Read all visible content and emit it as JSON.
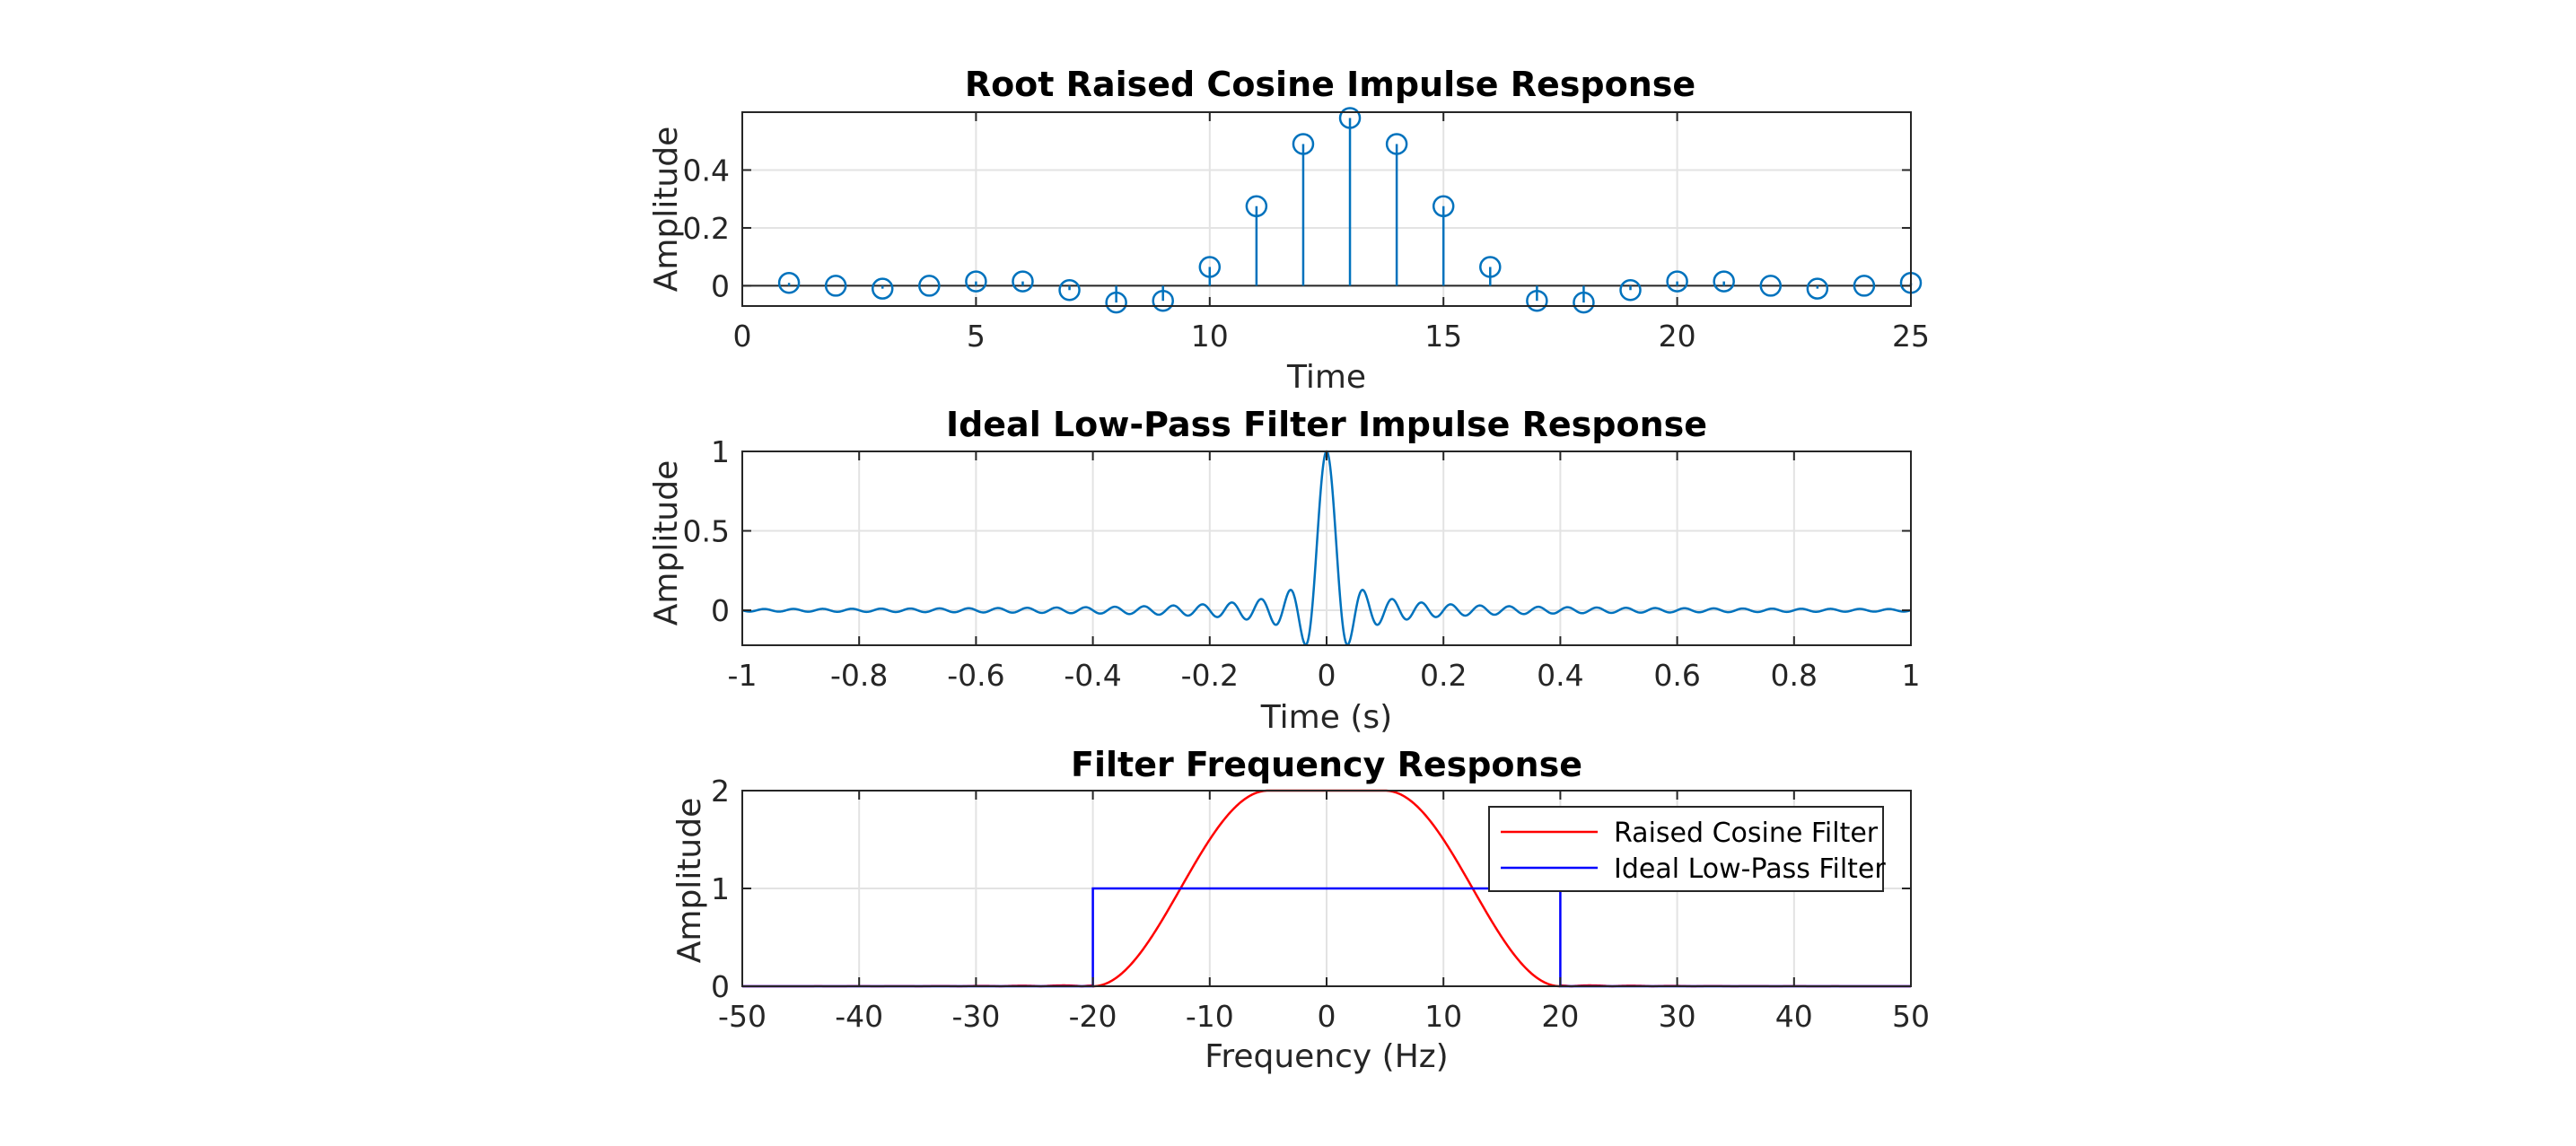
{
  "chart_data": [
    {
      "type": "stem",
      "title": "Root Raised Cosine Impulse Response",
      "xlabel": "Time",
      "ylabel": "Amplitude",
      "xlim": [
        0,
        25
      ],
      "ylim": [
        -0.07,
        0.6
      ],
      "xticks": [
        0,
        5,
        10,
        15,
        20,
        25
      ],
      "yticks": [
        0,
        0.2,
        0.4
      ],
      "grid": true,
      "color": "#0072BD",
      "x": [
        1,
        2,
        3,
        4,
        5,
        6,
        7,
        8,
        9,
        10,
        11,
        12,
        13,
        14,
        15,
        16,
        17,
        18,
        19,
        20,
        21,
        22,
        23,
        24,
        25
      ],
      "values": [
        0.01,
        0.0,
        -0.01,
        0.0,
        0.015,
        0.015,
        -0.015,
        -0.058,
        -0.052,
        0.065,
        0.275,
        0.49,
        0.58,
        0.49,
        0.275,
        0.065,
        -0.052,
        -0.058,
        -0.015,
        0.015,
        0.015,
        0.0,
        -0.01,
        0.0,
        0.01
      ]
    },
    {
      "type": "line",
      "title": "Ideal Low-Pass Filter Impulse Response",
      "xlabel": "Time (s)",
      "ylabel": "Amplitude",
      "xlim": [
        -1,
        1
      ],
      "ylim": [
        -0.22,
        1.0
      ],
      "xticks": [
        -1,
        -0.8,
        -0.6,
        -0.4,
        -0.2,
        0,
        0.2,
        0.4,
        0.6,
        0.8,
        1
      ],
      "yticks": [
        0,
        0.5,
        1
      ],
      "grid": true,
      "color": "#0072BD",
      "series": [
        {
          "function": "sinc",
          "cutoff_hz": 20,
          "x_range": [
            -1,
            1
          ],
          "sample_rate": 1000
        }
      ]
    },
    {
      "type": "line",
      "title": "Filter Frequency Response",
      "xlabel": "Frequency (Hz)",
      "ylabel": "Amplitude",
      "xlim": [
        -50,
        50
      ],
      "ylim": [
        0,
        2
      ],
      "xticks": [
        -50,
        -40,
        -30,
        -20,
        -10,
        0,
        10,
        20,
        30,
        40,
        50
      ],
      "yticks": [
        0,
        1,
        2
      ],
      "grid": true,
      "legend": "top-right",
      "series": [
        {
          "name": "Raised Cosine Filter",
          "color": "#FF0000",
          "function": "raised-cosine",
          "peak": 2,
          "flat_to_hz": 5,
          "edge_hz": 20
        },
        {
          "name": "Ideal Low-Pass Filter",
          "color": "#0000FF",
          "function": "rect",
          "height": 1,
          "cutoff_hz": 20
        }
      ]
    }
  ]
}
